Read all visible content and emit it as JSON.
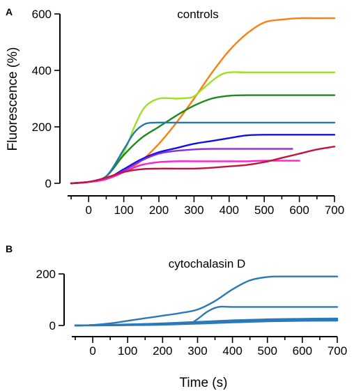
{
  "chart_data": [
    {
      "panel": "A",
      "type": "line",
      "title": "controls",
      "xlabel": "",
      "ylabel": "Fluorescence (%)",
      "xlim": [
        -60,
        700
      ],
      "ylim": [
        0,
        600
      ],
      "xticks": [
        0,
        100,
        200,
        300,
        400,
        500,
        600,
        700
      ],
      "xtick_labels": [
        "0",
        "100",
        "200",
        "300",
        "400",
        "500",
        "600",
        "700"
      ],
      "yticks": [
        0,
        200,
        400,
        600
      ],
      "ytick_labels": [
        "0",
        "200",
        "400",
        "600"
      ],
      "grid": false,
      "series": [
        {
          "color": "#ff7f0e",
          "x": [
            -50,
            0,
            50,
            100,
            150,
            200,
            250,
            300,
            350,
            400,
            450,
            500,
            550,
            600,
            650,
            700
          ],
          "y": [
            0,
            5,
            15,
            40,
            80,
            140,
            215,
            300,
            390,
            470,
            530,
            570,
            580,
            585,
            585,
            585
          ]
        },
        {
          "color": "#9ee024",
          "x": [
            -50,
            0,
            50,
            100,
            130,
            160,
            200,
            250,
            280,
            300,
            330,
            370,
            400,
            450,
            500,
            600,
            700
          ],
          "y": [
            0,
            5,
            25,
            110,
            200,
            270,
            300,
            300,
            302,
            308,
            340,
            380,
            393,
            393,
            393,
            393,
            393
          ]
        },
        {
          "color": "#1a8a1a",
          "x": [
            -50,
            0,
            50,
            100,
            150,
            200,
            250,
            300,
            350,
            400,
            450,
            500,
            600,
            700
          ],
          "y": [
            0,
            5,
            25,
            100,
            160,
            200,
            240,
            275,
            300,
            310,
            312,
            312,
            312,
            312
          ]
        },
        {
          "color": "#1f77b4",
          "x": [
            -50,
            0,
            50,
            100,
            130,
            160,
            190,
            220,
            260,
            300,
            400,
            500,
            600,
            700
          ],
          "y": [
            0,
            5,
            25,
            120,
            180,
            210,
            215,
            215,
            215,
            215,
            215,
            215,
            215,
            215
          ]
        },
        {
          "color": "#1010e0",
          "x": [
            -50,
            0,
            50,
            100,
            150,
            200,
            250,
            300,
            350,
            400,
            450,
            500,
            600,
            700
          ],
          "y": [
            0,
            5,
            15,
            50,
            85,
            110,
            125,
            140,
            150,
            160,
            170,
            172,
            172,
            172
          ]
        },
        {
          "color": "#8a2be2",
          "x": [
            -50,
            0,
            50,
            100,
            150,
            200,
            250,
            300,
            350,
            400,
            450,
            500,
            580
          ],
          "y": [
            0,
            5,
            15,
            45,
            80,
            105,
            115,
            120,
            122,
            122,
            122,
            122,
            122
          ]
        },
        {
          "color": "#ff1fd2",
          "x": [
            -50,
            0,
            50,
            100,
            150,
            200,
            250,
            300,
            350,
            400,
            450,
            500,
            600
          ],
          "y": [
            0,
            5,
            15,
            40,
            65,
            75,
            78,
            78,
            78,
            78,
            78,
            80,
            80
          ]
        },
        {
          "color": "#c0143c",
          "x": [
            -50,
            0,
            50,
            100,
            150,
            200,
            250,
            300,
            350,
            400,
            450,
            500,
            550,
            600,
            650,
            700
          ],
          "y": [
            0,
            5,
            20,
            40,
            50,
            52,
            52,
            52,
            55,
            60,
            65,
            75,
            90,
            105,
            120,
            130
          ]
        }
      ]
    },
    {
      "panel": "B",
      "type": "line",
      "title": "cytochalasin D",
      "xlabel": "Time (s)",
      "ylabel": "",
      "xlim": [
        -60,
        700
      ],
      "ylim": [
        0,
        200
      ],
      "xticks": [
        0,
        100,
        200,
        300,
        400,
        500,
        600,
        700
      ],
      "xtick_labels": [
        "0",
        "100",
        "200",
        "300",
        "400",
        "500",
        "600",
        "700"
      ],
      "yticks": [
        0,
        200
      ],
      "ytick_labels": [
        "0",
        "200"
      ],
      "grid": false,
      "series": [
        {
          "color": "#2a7ab8",
          "x": [
            -50,
            0,
            50,
            100,
            150,
            200,
            250,
            300,
            350,
            400,
            450,
            500,
            550,
            600,
            700
          ],
          "y": [
            0,
            2,
            8,
            18,
            28,
            38,
            48,
            62,
            95,
            140,
            175,
            188,
            190,
            190,
            190
          ]
        },
        {
          "color": "#2a7ab8",
          "x": [
            -50,
            0,
            100,
            200,
            250,
            280,
            300,
            330,
            360,
            400,
            500,
            600,
            700
          ],
          "y": [
            0,
            1,
            3,
            5,
            7,
            9,
            25,
            55,
            72,
            72,
            72,
            72,
            72
          ]
        },
        {
          "color": "#2a7ab8",
          "x": [
            -50,
            0,
            100,
            200,
            300,
            400,
            500,
            600,
            700
          ],
          "y": [
            0,
            1,
            4,
            8,
            14,
            20,
            24,
            26,
            27
          ]
        },
        {
          "color": "#2a7ab8",
          "x": [
            -50,
            0,
            100,
            200,
            300,
            400,
            500,
            600,
            700
          ],
          "y": [
            0,
            1,
            3,
            7,
            12,
            18,
            22,
            24,
            25
          ]
        },
        {
          "color": "#2a7ab8",
          "x": [
            -50,
            0,
            100,
            200,
            300,
            400,
            500,
            600,
            700
          ],
          "y": [
            0,
            1,
            3,
            6,
            11,
            17,
            21,
            23,
            24
          ]
        },
        {
          "color": "#2a7ab8",
          "x": [
            -50,
            0,
            100,
            200,
            300,
            400,
            500,
            600,
            700
          ],
          "y": [
            0,
            1,
            2,
            5,
            10,
            15,
            19,
            21,
            22
          ]
        },
        {
          "color": "#2a7ab8",
          "x": [
            -50,
            0,
            100,
            200,
            300,
            400,
            500,
            600,
            700
          ],
          "y": [
            0,
            1,
            2,
            4,
            9,
            14,
            18,
            20,
            21
          ]
        },
        {
          "color": "#2a7ab8",
          "x": [
            -50,
            0,
            100,
            200,
            300,
            400,
            500,
            600,
            700
          ],
          "y": [
            0,
            0,
            1,
            3,
            7,
            12,
            16,
            18,
            19
          ]
        }
      ]
    }
  ]
}
